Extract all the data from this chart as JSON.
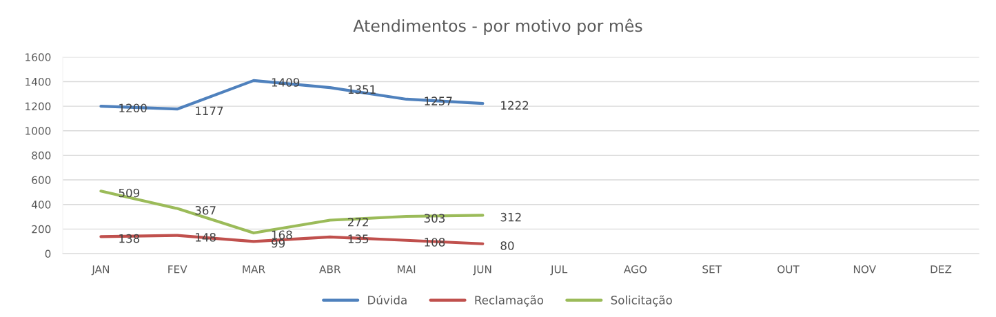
{
  "chart_data": {
    "type": "line",
    "title": "Atendimentos - por motivo por mês",
    "categories": [
      "JAN",
      "FEV",
      "MAR",
      "ABR",
      "MAI",
      "JUN",
      "JUL",
      "AGO",
      "SET",
      "OUT",
      "NOV",
      "DEZ"
    ],
    "series": [
      {
        "name": "Dúvida",
        "color": "#4f81bd",
        "values": [
          1200,
          1177,
          1409,
          1351,
          1257,
          1222,
          null,
          null,
          null,
          null,
          null,
          null
        ]
      },
      {
        "name": "Reclamação",
        "color": "#c0504d",
        "values": [
          138,
          148,
          99,
          135,
          108,
          80,
          null,
          null,
          null,
          null,
          null,
          null
        ]
      },
      {
        "name": "Solicitação",
        "color": "#9bbb59",
        "values": [
          509,
          367,
          168,
          272,
          303,
          312,
          null,
          null,
          null,
          null,
          null,
          null
        ]
      }
    ],
    "ylim": [
      0,
      1600
    ],
    "yticks": [
      0,
      200,
      400,
      600,
      800,
      1000,
      1200,
      1400,
      1600
    ],
    "grid": "y",
    "legend": "bottom",
    "data_labels": true,
    "marker": "none",
    "line_style": "solid"
  }
}
